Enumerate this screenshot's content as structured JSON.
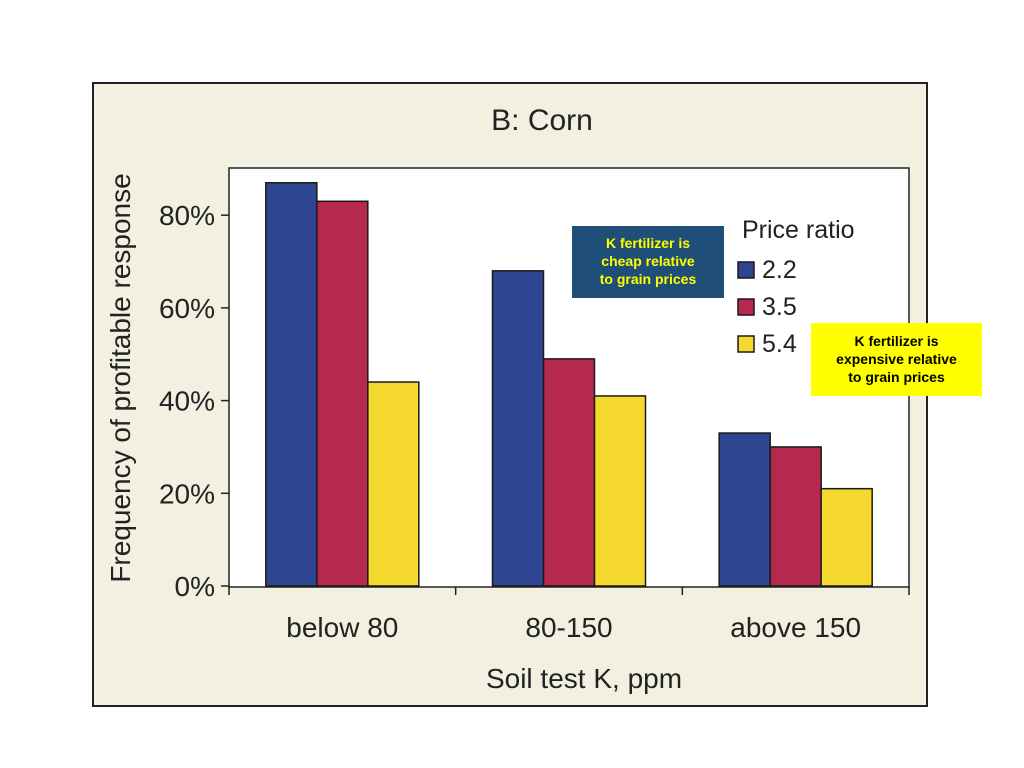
{
  "chart_data": {
    "type": "bar",
    "title": "B: Corn",
    "xlabel": "Soil test K, ppm",
    "ylabel": "Frequency of profitable response",
    "categories": [
      "below 80",
      "80-150",
      "above 150"
    ],
    "y_ticks": [
      "0%",
      "20%",
      "40%",
      "60%",
      "80%"
    ],
    "ylim": [
      0,
      90
    ],
    "legend_title": "Price ratio",
    "legend_position": "top-right",
    "series": [
      {
        "name": "2.2",
        "color": "#2e4591",
        "values": [
          87,
          68,
          33
        ]
      },
      {
        "name": "3.5",
        "color": "#b5294f",
        "values": [
          83,
          49,
          30
        ]
      },
      {
        "name": "5.4",
        "color": "#f5d92e",
        "values": [
          44,
          41,
          21
        ]
      }
    ]
  },
  "annotations": {
    "cheap": "K fertilizer is\ncheap relative\nto grain prices",
    "expensive": "K fertilizer is\nexpensive relative\nto grain prices"
  },
  "colors": {
    "panel_background": "#f2f0e1",
    "plot_background": "#ffffff",
    "cheap_note_background": "#1f4e79",
    "cheap_note_text": "#ffff00",
    "expensive_note_background": "#ffff00"
  }
}
